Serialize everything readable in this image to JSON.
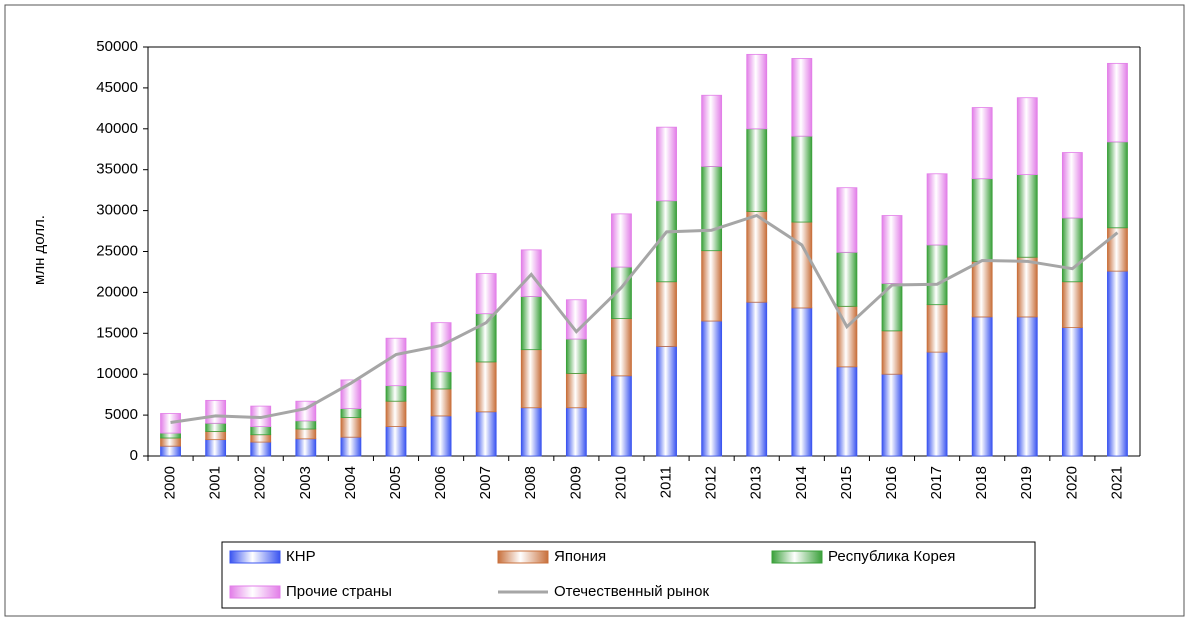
{
  "chart_data": {
    "type": "stacked_bar_line",
    "y_label": "млн долл.",
    "categories": [
      "2000",
      "2001",
      "2002",
      "2003",
      "2004",
      "2005",
      "2006",
      "2007",
      "2008",
      "2009",
      "2010",
      "2011",
      "2012",
      "2013",
      "2014",
      "2015",
      "2016",
      "2017",
      "2018",
      "2019",
      "2020",
      "2021"
    ],
    "series": [
      {
        "name": "КНР",
        "color": "#3b55f0",
        "values": [
          1200,
          2000,
          1700,
          2100,
          2300,
          3600,
          4900,
          5400,
          5900,
          5900,
          9800,
          13400,
          16500,
          18800,
          18100,
          10900,
          10000,
          12700,
          17000,
          17000,
          15700,
          22600
        ]
      },
      {
        "name": "Япония",
        "color": "#c8703c",
        "values": [
          1000,
          1000,
          900,
          1200,
          2400,
          3100,
          3300,
          6100,
          7100,
          4200,
          7000,
          7900,
          8600,
          11100,
          10500,
          7400,
          5300,
          5800,
          6800,
          7300,
          5600,
          5300
        ]
      },
      {
        "name": "Республика Корея",
        "color": "#3aa03a",
        "values": [
          600,
          1000,
          1000,
          1000,
          1100,
          1900,
          2100,
          5900,
          6500,
          4200,
          6300,
          9900,
          10300,
          10100,
          10500,
          6600,
          5800,
          7300,
          10100,
          10100,
          7800,
          10500
        ]
      },
      {
        "name": "Прочие страны",
        "color": "#e27ee8",
        "values": [
          2400,
          2800,
          2500,
          2400,
          3500,
          5800,
          6000,
          4900,
          5700,
          4800,
          6500,
          9000,
          8700,
          9100,
          9500,
          7900,
          8300,
          8700,
          8700,
          9400,
          8000,
          9600
        ]
      },
      {
        "name": "Отечественный рынок",
        "color": "#a6a6a6",
        "kind": "line",
        "values": [
          4100,
          4900,
          4700,
          5800,
          8900,
          12400,
          13500,
          16300,
          22200,
          15200,
          20600,
          27400,
          27600,
          29400,
          25800,
          15800,
          20900,
          21000,
          23900,
          23800,
          22900,
          27300
        ]
      }
    ],
    "ylim": [
      0,
      50000
    ],
    "yticks": [
      0,
      5000,
      10000,
      15000,
      20000,
      25000,
      30000,
      35000,
      40000,
      45000,
      50000
    ]
  }
}
